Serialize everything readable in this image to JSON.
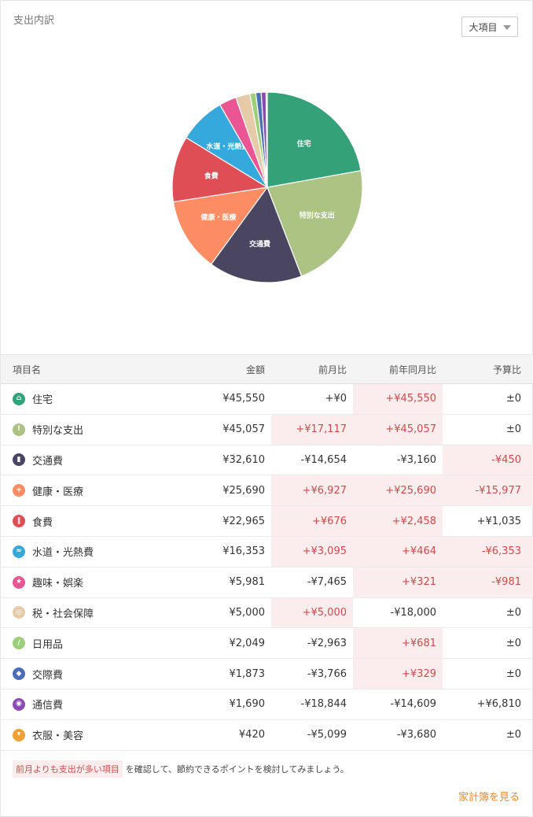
{
  "header": {
    "title": "支出内訳",
    "dropdown_label": "大項目"
  },
  "chart_data": {
    "type": "pie",
    "slices": [
      {
        "label": "住宅",
        "value": 45550,
        "color": "#35a178",
        "show_label": true
      },
      {
        "label": "特別な支出",
        "value": 45057,
        "color": "#acc384",
        "show_label": true
      },
      {
        "label": "交通費",
        "value": 32610,
        "color": "#4a4560",
        "show_label": true
      },
      {
        "label": "健康・医療",
        "value": 25690,
        "color": "#fc8c64",
        "show_label": true
      },
      {
        "label": "食費",
        "value": 22965,
        "color": "#e04e55",
        "show_label": true
      },
      {
        "label": "水道・光熱費",
        "value": 16353,
        "color": "#36a9dc",
        "show_label": true
      },
      {
        "label": "趣味・娯楽",
        "value": 5981,
        "color": "#ea5593",
        "show_label": false
      },
      {
        "label": "税・社会保障",
        "value": 5000,
        "color": "#e6cba8",
        "show_label": false
      },
      {
        "label": "日用品",
        "value": 2049,
        "color": "#9dcf7a",
        "show_label": false
      },
      {
        "label": "交際費",
        "value": 1873,
        "color": "#4a6fb5",
        "show_label": false
      },
      {
        "label": "通信費",
        "value": 1690,
        "color": "#8a4bb3",
        "show_label": false
      },
      {
        "label": "衣服・美容",
        "value": 420,
        "color": "#f1a035",
        "show_label": false
      }
    ]
  },
  "table": {
    "headers": {
      "name": "項目名",
      "amount": "金額",
      "mom": "前月比",
      "yoy": "前年同月比",
      "budget": "予算比"
    },
    "rows": [
      {
        "name": "住宅",
        "icon": "house-icon",
        "glyph": "⌂",
        "color": "#35a178",
        "amount": "¥45,550",
        "mom": "+¥0",
        "yoy": "+¥45,550",
        "budget": "±0",
        "hl": [
          false,
          true,
          false
        ]
      },
      {
        "name": "特別な支出",
        "icon": "exclamation-icon",
        "glyph": "!",
        "color": "#acc384",
        "amount": "¥45,057",
        "mom": "+¥17,117",
        "yoy": "+¥45,057",
        "budget": "±0",
        "hl": [
          true,
          true,
          false
        ]
      },
      {
        "name": "交通費",
        "icon": "train-icon",
        "glyph": "▮",
        "color": "#4a4560",
        "amount": "¥32,610",
        "mom": "-¥14,654",
        "yoy": "-¥3,160",
        "budget": "-¥450",
        "hl": [
          false,
          false,
          true
        ]
      },
      {
        "name": "健康・医療",
        "icon": "medical-cross-icon",
        "glyph": "+",
        "color": "#fc8c64",
        "amount": "¥25,690",
        "mom": "+¥6,927",
        "yoy": "+¥25,690",
        "budget": "-¥15,977",
        "hl": [
          true,
          true,
          true
        ]
      },
      {
        "name": "食費",
        "icon": "utensils-icon",
        "glyph": "‖",
        "color": "#e04e55",
        "amount": "¥22,965",
        "mom": "+¥676",
        "yoy": "+¥2,458",
        "budget": "+¥1,035",
        "hl": [
          true,
          true,
          false
        ]
      },
      {
        "name": "水道・光熱費",
        "icon": "faucet-icon",
        "glyph": "≈",
        "color": "#36a9dc",
        "amount": "¥16,353",
        "mom": "+¥3,095",
        "yoy": "+¥464",
        "budget": "-¥6,353",
        "hl": [
          true,
          true,
          true
        ]
      },
      {
        "name": "趣味・娯楽",
        "icon": "star-icon",
        "glyph": "★",
        "color": "#ea5593",
        "amount": "¥5,981",
        "mom": "-¥7,465",
        "yoy": "+¥321",
        "budget": "-¥981",
        "hl": [
          false,
          true,
          true
        ]
      },
      {
        "name": "税・社会保障",
        "icon": "coins-icon",
        "glyph": "◎",
        "color": "#e6cba8",
        "amount": "¥5,000",
        "mom": "+¥5,000",
        "yoy": "-¥18,000",
        "budget": "±0",
        "hl": [
          true,
          false,
          false
        ]
      },
      {
        "name": "日用品",
        "icon": "leaf-icon",
        "glyph": "/",
        "color": "#9dcf7a",
        "amount": "¥2,049",
        "mom": "-¥2,963",
        "yoy": "+¥681",
        "budget": "±0",
        "hl": [
          false,
          true,
          false
        ]
      },
      {
        "name": "交際費",
        "icon": "people-icon",
        "glyph": "◆",
        "color": "#4a6fb5",
        "amount": "¥1,873",
        "mom": "-¥3,766",
        "yoy": "+¥329",
        "budget": "±0",
        "hl": [
          false,
          true,
          false
        ]
      },
      {
        "name": "通信費",
        "icon": "signal-icon",
        "glyph": "◉",
        "color": "#8a4bb3",
        "amount": "¥1,690",
        "mom": "-¥18,844",
        "yoy": "-¥14,609",
        "budget": "+¥6,810",
        "hl": [
          false,
          false,
          false
        ]
      },
      {
        "name": "衣服・美容",
        "icon": "shirt-icon",
        "glyph": "▾",
        "color": "#f1a035",
        "amount": "¥420",
        "mom": "-¥5,099",
        "yoy": "-¥3,680",
        "budget": "±0",
        "hl": [
          false,
          false,
          false
        ]
      }
    ]
  },
  "footer": {
    "note_tag": "前月よりも支出が多い項目",
    "note_text": "を確認して、節約できるポイントを検討してみましょう。",
    "link_label": "家計簿を見る"
  }
}
